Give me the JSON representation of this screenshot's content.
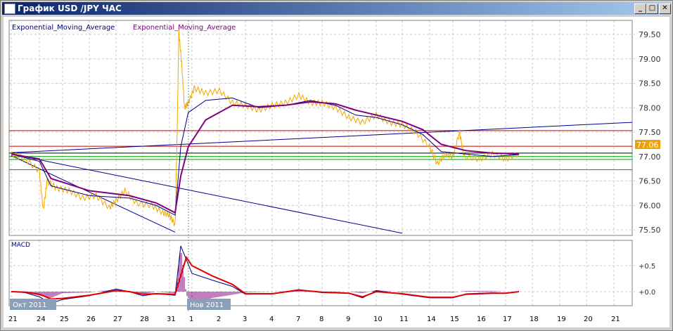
{
  "window": {
    "title": "График USD /JPY  ЧАС",
    "buttons": {
      "minimize": "_",
      "maximize": "□",
      "close": "✕"
    }
  },
  "legend": {
    "ema_fast": "Exponential_Moving_Average",
    "ema_slow": "Exponential_Moving_Average"
  },
  "macd_label": "MACD",
  "current_price_label": "77.06",
  "month_labels": {
    "oct": "Окт 2011",
    "nov": "Нов 2011"
  },
  "colors": {
    "price": "#f0a800",
    "ema_fast": "#000080",
    "ema_slow": "#800080",
    "macd": "#000080",
    "signal": "#e00000",
    "histogram": "#800080",
    "price_badge": "#f0a000",
    "support": "#00a000",
    "resistance": "#c00000",
    "trend": "#000090"
  },
  "chart_data": [
    {
      "type": "line",
      "title": "",
      "ylim": [
        75.4,
        79.7
      ],
      "y_ticks": [
        "79.50",
        "79.00",
        "78.50",
        "78.00",
        "77.50",
        "77.00",
        "76.50",
        "76.00",
        "75.50"
      ],
      "x_ticks": [
        "21",
        "24",
        "25",
        "26",
        "27",
        "28",
        "31",
        "1",
        "2",
        "3",
        "4",
        "7",
        "8",
        "9",
        "10",
        "11",
        "14",
        "15",
        "16",
        "17",
        "18",
        "19",
        "20",
        "21"
      ],
      "grid": true,
      "series": [
        {
          "name": "",
          "role": "price",
          "points": [
            [
              "2011-10-21 00",
              77.05
            ],
            [
              "2011-10-21 12",
              76.95
            ],
            [
              "2011-10-24 00",
              76.7
            ],
            [
              "2011-10-24 04",
              75.9
            ],
            [
              "2011-10-24 08",
              76.5
            ],
            [
              "2011-10-24 18",
              76.35
            ],
            [
              "2011-10-25 06",
              76.3
            ],
            [
              "2011-10-25 18",
              76.15
            ],
            [
              "2011-10-26 06",
              76.2
            ],
            [
              "2011-10-26 18",
              75.95
            ],
            [
              "2011-10-27 00",
              76.1
            ],
            [
              "2011-10-27 08",
              76.3
            ],
            [
              "2011-10-27 18",
              76.05
            ],
            [
              "2011-10-28 08",
              76.0
            ],
            [
              "2011-10-28 18",
              75.85
            ],
            [
              "2011-10-31 00",
              75.8
            ],
            [
              "2011-10-31 06",
              75.6
            ],
            [
              "2011-10-31 08",
              77.3
            ],
            [
              "2011-10-31 10",
              79.55
            ],
            [
              "2011-10-31 13",
              78.9
            ],
            [
              "2011-10-31 16",
              78.0
            ],
            [
              "2011-10-31 20",
              78.1
            ],
            [
              "2011-11-01 02",
              78.4
            ],
            [
              "2011-11-01 12",
              78.3
            ],
            [
              "2011-11-02 00",
              78.35
            ],
            [
              "2011-11-02 12",
              78.1
            ],
            [
              "2011-11-03 00",
              78.05
            ],
            [
              "2011-11-03 12",
              77.95
            ],
            [
              "2011-11-04 00",
              78.05
            ],
            [
              "2011-11-04 12",
              78.1
            ],
            [
              "2011-11-07 00",
              78.25
            ],
            [
              "2011-11-07 12",
              78.1
            ],
            [
              "2011-11-08 00",
              78.1
            ],
            [
              "2011-11-08 12",
              78.0
            ],
            [
              "2011-11-09 00",
              77.8
            ],
            [
              "2011-11-09 12",
              77.7
            ],
            [
              "2011-11-10 00",
              77.85
            ],
            [
              "2011-11-10 12",
              77.7
            ],
            [
              "2011-11-11 00",
              77.65
            ],
            [
              "2011-11-11 12",
              77.5
            ],
            [
              "2011-11-14 00",
              77.2
            ],
            [
              "2011-11-14 08",
              76.85
            ],
            [
              "2011-11-14 16",
              77.05
            ],
            [
              "2011-11-15 00",
              77.0
            ],
            [
              "2011-11-15 06",
              77.5
            ],
            [
              "2011-11-15 10",
              77.0
            ],
            [
              "2011-11-16 00",
              76.95
            ],
            [
              "2011-11-16 12",
              77.05
            ],
            [
              "2011-11-17 00",
              76.95
            ],
            [
              "2011-11-17 12",
              77.06
            ]
          ]
        },
        {
          "name": "Exponential_Moving_Average",
          "role": "ema_fast",
          "points": [
            [
              "2011-10-21 00",
              77.05
            ],
            [
              "2011-10-24 00",
              76.9
            ],
            [
              "2011-10-24 12",
              76.4
            ],
            [
              "2011-10-26 00",
              76.2
            ],
            [
              "2011-10-27 12",
              76.15
            ],
            [
              "2011-10-28 12",
              76.0
            ],
            [
              "2011-10-31 06",
              75.8
            ],
            [
              "2011-10-31 12",
              77.2
            ],
            [
              "2011-10-31 20",
              77.9
            ],
            [
              "2011-11-01 12",
              78.15
            ],
            [
              "2011-11-02 12",
              78.2
            ],
            [
              "2011-11-03 12",
              78.0
            ],
            [
              "2011-11-04 12",
              78.05
            ],
            [
              "2011-11-07 12",
              78.15
            ],
            [
              "2011-11-08 12",
              78.05
            ],
            [
              "2011-11-09 06",
              77.85
            ],
            [
              "2011-11-10 00",
              77.8
            ],
            [
              "2011-11-11 00",
              77.65
            ],
            [
              "2011-11-11 18",
              77.45
            ],
            [
              "2011-11-14 12",
              77.1
            ],
            [
              "2011-11-15 12",
              77.05
            ],
            [
              "2011-11-16 12",
              77.0
            ],
            [
              "2011-11-17 12",
              77.04
            ]
          ]
        },
        {
          "name": "Exponential_Moving_Average",
          "role": "ema_slow",
          "points": [
            [
              "2011-10-21 00",
              77.05
            ],
            [
              "2011-10-24 00",
              76.95
            ],
            [
              "2011-10-24 12",
              76.55
            ],
            [
              "2011-10-26 00",
              76.3
            ],
            [
              "2011-10-27 12",
              76.2
            ],
            [
              "2011-10-28 12",
              76.05
            ],
            [
              "2011-10-31 06",
              75.85
            ],
            [
              "2011-10-31 12",
              76.6
            ],
            [
              "2011-10-31 20",
              77.2
            ],
            [
              "2011-11-01 12",
              77.75
            ],
            [
              "2011-11-02 12",
              78.05
            ],
            [
              "2011-11-03 12",
              78.02
            ],
            [
              "2011-11-04 12",
              78.05
            ],
            [
              "2011-11-07 12",
              78.12
            ],
            [
              "2011-11-08 12",
              78.08
            ],
            [
              "2011-11-09 06",
              77.95
            ],
            [
              "2011-11-10 00",
              77.85
            ],
            [
              "2011-11-11 00",
              77.72
            ],
            [
              "2011-11-11 18",
              77.55
            ],
            [
              "2011-11-14 12",
              77.25
            ],
            [
              "2011-11-15 12",
              77.12
            ],
            [
              "2011-11-16 12",
              77.07
            ],
            [
              "2011-11-17 12",
              77.05
            ]
          ]
        }
      ],
      "hlines": [
        {
          "value": 77.53,
          "role": "resistance"
        },
        {
          "value": 77.21,
          "role": "resistance"
        },
        {
          "value": 77.07,
          "role": "current"
        },
        {
          "value": 77.0,
          "role": "support"
        },
        {
          "value": 76.94,
          "role": "support"
        },
        {
          "value": 76.73,
          "role": "support"
        }
      ],
      "trendlines": [
        [
          [
            "2011-10-21 00",
            77.08
          ],
          [
            "2011-11-21 24",
            77.7
          ]
        ],
        [
          [
            "2011-10-21 00",
            77.05
          ],
          [
            "2011-11-11 00",
            75.43
          ]
        ],
        [
          [
            "2011-10-21 00",
            77.02
          ],
          [
            "2011-10-31 06",
            75.45
          ]
        ]
      ]
    },
    {
      "type": "line",
      "title": "MACD",
      "ylim": [
        -0.25,
        0.95
      ],
      "y_ticks": [
        "+0.5",
        "+0.0"
      ],
      "series": [
        {
          "name": "",
          "role": "macd",
          "points": [
            [
              "2011-10-21 00",
              0.0
            ],
            [
              "2011-10-21 12",
              -0.02
            ],
            [
              "2011-10-24 00",
              -0.1
            ],
            [
              "2011-10-24 12",
              -0.22
            ],
            [
              "2011-10-25 00",
              -0.15
            ],
            [
              "2011-10-26 00",
              -0.08
            ],
            [
              "2011-10-27 00",
              0.05
            ],
            [
              "2011-10-27 12",
              0.0
            ],
            [
              "2011-10-28 00",
              -0.08
            ],
            [
              "2011-10-28 12",
              -0.04
            ],
            [
              "2011-10-31 06",
              -0.07
            ],
            [
              "2011-10-31 12",
              0.88
            ],
            [
              "2011-11-01 00",
              0.35
            ],
            [
              "2011-11-01 18",
              0.22
            ],
            [
              "2011-11-02 12",
              0.1
            ],
            [
              "2011-11-03 00",
              -0.05
            ],
            [
              "2011-11-04 00",
              -0.04
            ],
            [
              "2011-11-07 00",
              0.04
            ],
            [
              "2011-11-08 00",
              -0.02
            ],
            [
              "2011-11-09 00",
              -0.03
            ],
            [
              "2011-11-09 12",
              -0.12
            ],
            [
              "2011-11-10 00",
              0.02
            ],
            [
              "2011-11-11 00",
              -0.05
            ],
            [
              "2011-11-14 00",
              -0.12
            ],
            [
              "2011-11-15 00",
              -0.12
            ],
            [
              "2011-11-15 12",
              -0.04
            ],
            [
              "2011-11-16 12",
              -0.02
            ],
            [
              "2011-11-17 00",
              -0.03
            ],
            [
              "2011-11-17 12",
              0.0
            ]
          ]
        },
        {
          "name": "",
          "role": "signal",
          "points": [
            [
              "2011-10-21 00",
              0.0
            ],
            [
              "2011-10-21 12",
              -0.01
            ],
            [
              "2011-10-24 00",
              -0.05
            ],
            [
              "2011-10-24 12",
              -0.14
            ],
            [
              "2011-10-25 00",
              -0.13
            ],
            [
              "2011-10-26 00",
              -0.07
            ],
            [
              "2011-10-27 00",
              0.02
            ],
            [
              "2011-10-27 12",
              0.0
            ],
            [
              "2011-10-28 00",
              -0.05
            ],
            [
              "2011-10-28 12",
              -0.04
            ],
            [
              "2011-10-31 06",
              -0.05
            ],
            [
              "2011-10-31 18",
              0.66
            ],
            [
              "2011-11-01 00",
              0.5
            ],
            [
              "2011-11-01 18",
              0.3
            ],
            [
              "2011-11-02 12",
              0.14
            ],
            [
              "2011-11-03 00",
              -0.04
            ],
            [
              "2011-11-04 00",
              -0.04
            ],
            [
              "2011-11-07 00",
              0.03
            ],
            [
              "2011-11-08 00",
              -0.01
            ],
            [
              "2011-11-09 00",
              -0.03
            ],
            [
              "2011-11-09 12",
              -0.1
            ],
            [
              "2011-11-10 00",
              0.0
            ],
            [
              "2011-11-11 00",
              -0.04
            ],
            [
              "2011-11-14 00",
              -0.11
            ],
            [
              "2011-11-15 00",
              -0.11
            ],
            [
              "2011-11-15 12",
              -0.05
            ],
            [
              "2011-11-16 12",
              -0.03
            ],
            [
              "2011-11-17 00",
              -0.03
            ],
            [
              "2011-11-17 12",
              0.0
            ]
          ]
        }
      ]
    }
  ]
}
